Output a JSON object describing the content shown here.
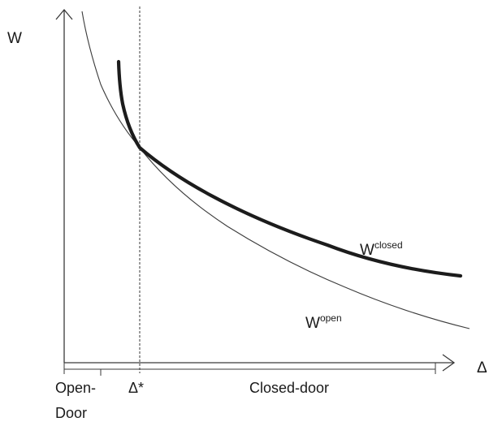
{
  "axes": {
    "y_label": "W",
    "x_label": "Δ"
  },
  "curves": {
    "closed": {
      "base": "W",
      "superscript": "closed"
    },
    "open": {
      "base": "W",
      "superscript": "open"
    }
  },
  "threshold": {
    "label": "Δ*"
  },
  "regions": {
    "open_door_line1": "Open-",
    "open_door_line2": "Door",
    "closed_door": "Closed-door"
  },
  "colors": {
    "axis": "#3a3a3a",
    "closed_curve": "#1c1c1c",
    "open_curve": "#3c3c3c",
    "text": "#1a1a1a"
  }
}
